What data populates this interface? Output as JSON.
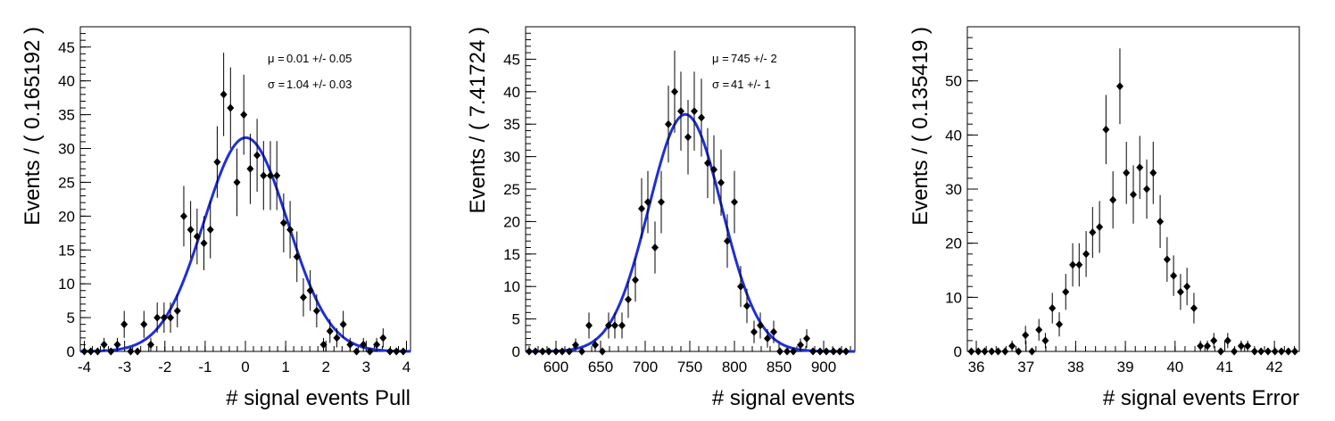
{
  "chart_data": [
    {
      "type": "scatter",
      "xlabel": "# signal events Pull",
      "ylabel": "Events / ( 0.165192 )",
      "xlim": [
        -4.1,
        4.1
      ],
      "ylim": [
        0,
        48
      ],
      "xticks": [
        -4,
        -3,
        -2,
        -1,
        0,
        1,
        2,
        3,
        4
      ],
      "yticks": [
        0,
        5,
        10,
        15,
        20,
        25,
        30,
        35,
        40,
        45
      ],
      "stats": [
        {
          "label": "μ =",
          "value": "0.01 +/- 0.05"
        },
        {
          "label": "σ =",
          "value": "1.04 +/- 0.03"
        }
      ],
      "fit": {
        "mean": 0.01,
        "sigma": 1.04,
        "amplitude": 31.6,
        "color": "#1f2fd6"
      },
      "points": {
        "x": [
          -4.0,
          -3.84,
          -3.67,
          -3.51,
          -3.34,
          -3.18,
          -3.01,
          -2.85,
          -2.68,
          -2.52,
          -2.35,
          -2.19,
          -2.02,
          -1.86,
          -1.69,
          -1.53,
          -1.36,
          -1.2,
          -1.03,
          -0.87,
          -0.7,
          -0.54,
          -0.37,
          -0.21,
          -0.04,
          0.12,
          0.29,
          0.45,
          0.62,
          0.78,
          0.95,
          1.11,
          1.28,
          1.44,
          1.61,
          1.77,
          1.94,
          2.1,
          2.27,
          2.43,
          2.6,
          2.76,
          2.93,
          3.09,
          3.26,
          3.42,
          3.59,
          3.75,
          3.92
        ],
        "y": [
          0,
          0,
          0,
          1,
          0,
          1,
          4,
          0,
          0,
          4,
          1,
          5,
          5,
          5,
          6,
          20,
          18,
          17,
          16,
          18,
          28,
          38,
          36,
          25,
          35,
          27,
          29,
          26,
          26,
          26,
          19,
          18,
          14,
          8,
          9,
          6,
          1,
          3,
          2,
          4,
          1,
          0,
          1,
          0,
          1,
          2,
          0,
          0,
          0
        ]
      }
    },
    {
      "type": "scatter",
      "xlabel": "# signal events",
      "ylabel": "Events / ( 7.41724 )",
      "xlim": [
        566,
        935
      ],
      "ylim": [
        0,
        50
      ],
      "xticks": [
        600,
        650,
        700,
        750,
        800,
        850,
        900
      ],
      "yticks": [
        0,
        5,
        10,
        15,
        20,
        25,
        30,
        35,
        40,
        45
      ],
      "stats": [
        {
          "label": "μ =",
          "value": "745 +/- 2"
        },
        {
          "label": "σ =",
          "value": "41 +/- 1"
        }
      ],
      "fit": {
        "mean": 745,
        "sigma": 41,
        "amplitude": 36.5,
        "color": "#1f2fd6"
      },
      "points": {
        "x": [
          570,
          577,
          585,
          592,
          600,
          607,
          615,
          622,
          629,
          637,
          644,
          652,
          659,
          666,
          674,
          681,
          689,
          696,
          703,
          711,
          718,
          726,
          733,
          740,
          748,
          755,
          763,
          770,
          777,
          785,
          792,
          800,
          807,
          814,
          822,
          829,
          837,
          844,
          851,
          859,
          866,
          874,
          881,
          888,
          896,
          903,
          911,
          918,
          925
        ],
        "y": [
          0,
          0,
          0,
          0,
          0,
          0,
          0,
          1,
          0,
          4,
          1,
          0,
          4,
          4,
          4,
          8,
          11,
          22,
          23,
          16,
          23,
          35,
          40,
          37,
          33,
          37,
          36,
          29,
          28,
          26,
          17,
          23,
          10,
          7,
          3,
          4,
          2,
          3,
          0,
          0,
          0,
          1,
          2,
          0,
          0,
          0,
          0,
          0,
          0
        ]
      }
    },
    {
      "type": "scatter",
      "xlabel": "# signal events Error",
      "ylabel": "Events / ( 0.135419 )",
      "xlim": [
        35.82,
        42.5
      ],
      "ylim": [
        0,
        60
      ],
      "xticks": [
        36,
        37,
        38,
        39,
        40,
        41,
        42
      ],
      "yticks": [
        0,
        10,
        20,
        30,
        40,
        50
      ],
      "stats": [],
      "points": {
        "x": [
          35.9,
          36.04,
          36.17,
          36.31,
          36.44,
          36.58,
          36.72,
          36.85,
          36.99,
          37.12,
          37.26,
          37.39,
          37.53,
          37.67,
          37.8,
          37.94,
          38.07,
          38.21,
          38.34,
          38.48,
          38.61,
          38.75,
          38.89,
          39.02,
          39.16,
          39.29,
          39.43,
          39.56,
          39.7,
          39.84,
          39.97,
          40.11,
          40.24,
          40.38,
          40.51,
          40.65,
          40.78,
          40.92,
          41.06,
          41.19,
          41.33,
          41.46,
          41.6,
          41.73,
          41.87,
          42.01,
          42.14,
          42.28,
          42.41
        ],
        "y": [
          0,
          0,
          0,
          0,
          0,
          0,
          1,
          0,
          3,
          0,
          4,
          2,
          8,
          5,
          11,
          16,
          16,
          18,
          22,
          23,
          41,
          28,
          49,
          33,
          29,
          34,
          30,
          33,
          24,
          17,
          14,
          11,
          12,
          8,
          1,
          1,
          2,
          0,
          2,
          0,
          1,
          1,
          0,
          0,
          0,
          0,
          0,
          0,
          0
        ]
      }
    }
  ]
}
